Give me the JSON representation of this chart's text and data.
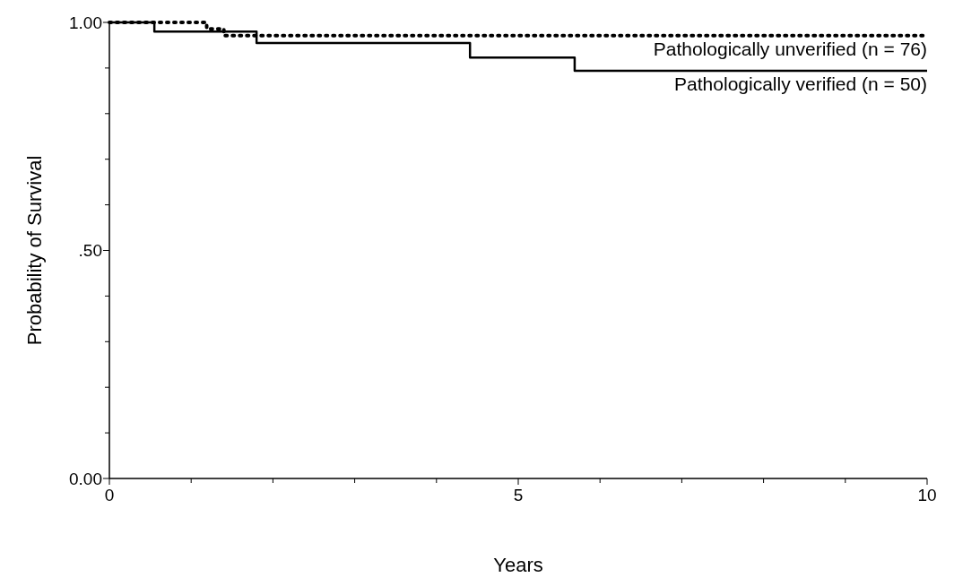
{
  "chart_data": {
    "type": "step",
    "xlabel": "Years",
    "ylabel": "Probability of Survival",
    "xlim": [
      0,
      10
    ],
    "ylim": [
      0,
      1
    ],
    "xticks": [
      0,
      {
        "value": 1,
        "label": null
      },
      {
        "value": 2,
        "label": null
      },
      {
        "value": 3,
        "label": null
      },
      {
        "value": 4,
        "label": null
      },
      5,
      {
        "value": 6,
        "label": null
      },
      {
        "value": 7,
        "label": null
      },
      {
        "value": 8,
        "label": null
      },
      {
        "value": 9,
        "label": null
      },
      10
    ],
    "yticks": [
      {
        "value": 0,
        "label": "0.00"
      },
      {
        "value": 0.1,
        "label": null
      },
      {
        "value": 0.2,
        "label": null
      },
      {
        "value": 0.3,
        "label": null
      },
      {
        "value": 0.4,
        "label": null
      },
      {
        "value": 0.5,
        "label": ".50"
      },
      {
        "value": 0.6,
        "label": null
      },
      {
        "value": 0.7,
        "label": null
      },
      {
        "value": 0.8,
        "label": null
      },
      {
        "value": 0.9,
        "label": null
      },
      {
        "value": 1,
        "label": "1.00"
      }
    ],
    "legend": false,
    "grid": false,
    "series": [
      {
        "name": "Pathologically unverified (n = 76)",
        "color": "#000000",
        "line_style": "dotted",
        "x": [
          0,
          1.19,
          1.4,
          10
        ],
        "values": [
          1,
          0.986,
          0.971,
          0.971
        ]
      },
      {
        "name": "Pathologically verified (n = 50)",
        "color": "#000000",
        "line_style": "solid",
        "x": [
          0,
          0.55,
          1.8,
          4.41,
          5.69,
          10
        ],
        "values": [
          1,
          0.98,
          0.955,
          0.923,
          0.894,
          0.894
        ]
      }
    ]
  }
}
